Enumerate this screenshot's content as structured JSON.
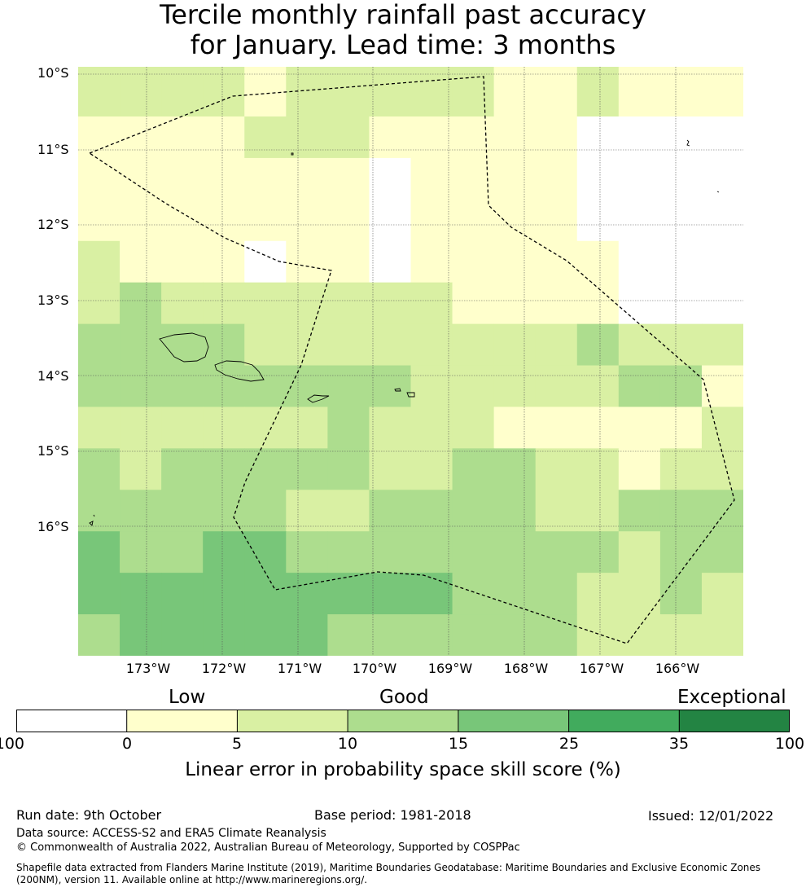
{
  "title_line1": "Tercile monthly rainfall past accuracy",
  "title_line2": "for January. Lead time: 3 months",
  "lat_labels": [
    "10°S",
    "11°S",
    "12°S",
    "13°S",
    "14°S",
    "15°S",
    "16°S"
  ],
  "lon_labels": [
    "173°W",
    "172°W",
    "171°W",
    "170°W",
    "169°W",
    "168°W",
    "167°W",
    "166°W"
  ],
  "colorbar": {
    "categories": [
      "Low",
      "Good",
      "Exceptional"
    ],
    "ticks": [
      "-100",
      "0",
      "5",
      "10",
      "15",
      "25",
      "35",
      "100"
    ],
    "colors": [
      "#ffffff",
      "#ffffcc",
      "#d9f0a3",
      "#addd8e",
      "#78c679",
      "#41ab5d",
      "#238443"
    ],
    "label": "Linear error in probability space skill score (%)"
  },
  "map": {
    "palette": {
      "0": "#ffffff",
      "1": "#ffffcc",
      "2": "#d9f0a3",
      "3": "#addd8e",
      "4": "#78c679"
    },
    "grid": [
      [
        2,
        2,
        2,
        2,
        1,
        2,
        2,
        2,
        2,
        2,
        1,
        1,
        2,
        1,
        1,
        1
      ],
      [
        1,
        1,
        1,
        1,
        2,
        2,
        2,
        1,
        1,
        1,
        1,
        1,
        0,
        0,
        0,
        0
      ],
      [
        1,
        1,
        1,
        1,
        1,
        1,
        1,
        0,
        1,
        1,
        1,
        1,
        0,
        0,
        0,
        0
      ],
      [
        1,
        1,
        1,
        1,
        1,
        1,
        1,
        0,
        1,
        1,
        1,
        1,
        0,
        0,
        0,
        0
      ],
      [
        2,
        1,
        1,
        1,
        0,
        1,
        1,
        0,
        1,
        1,
        1,
        1,
        1,
        0,
        0,
        0
      ],
      [
        2,
        3,
        2,
        2,
        2,
        2,
        2,
        2,
        2,
        1,
        1,
        1,
        1,
        0,
        0,
        0
      ],
      [
        3,
        3,
        3,
        3,
        2,
        2,
        2,
        2,
        2,
        2,
        2,
        2,
        3,
        2,
        2,
        2
      ],
      [
        3,
        3,
        3,
        3,
        3,
        3,
        3,
        3,
        2,
        2,
        2,
        2,
        2,
        3,
        3,
        1
      ],
      [
        2,
        2,
        2,
        2,
        2,
        2,
        3,
        2,
        2,
        2,
        1,
        1,
        1,
        1,
        1,
        2
      ],
      [
        3,
        2,
        3,
        3,
        3,
        3,
        3,
        2,
        2,
        3,
        3,
        2,
        2,
        1,
        2,
        2
      ],
      [
        3,
        3,
        3,
        3,
        3,
        2,
        2,
        3,
        3,
        3,
        3,
        2,
        2,
        3,
        3,
        3
      ],
      [
        4,
        3,
        3,
        4,
        4,
        3,
        3,
        3,
        3,
        3,
        3,
        3,
        3,
        2,
        3,
        3
      ],
      [
        4,
        4,
        4,
        4,
        4,
        4,
        4,
        4,
        4,
        3,
        3,
        3,
        2,
        2,
        3,
        2
      ],
      [
        3,
        4,
        4,
        4,
        4,
        4,
        3,
        3,
        3,
        3,
        3,
        3,
        2,
        2,
        2,
        2
      ]
    ]
  },
  "footer": {
    "run_date": "Run date: 9th October",
    "base_period": "Base period: 1981-2018",
    "issued": "Issued: 12/01/2022",
    "data_source": "Data source: ACCESS-S2 and ERA5 Climate Reanalysis",
    "copyright": "© Commonwealth of Australia 2022, Australian Bureau of Meteorology, Supported by COSPPac",
    "shapefile": "Shapefile data extracted from Flanders Marine Institute (2019), Maritime Boundaries Geodatabase: Maritime Boundaries and Exclusive Economic Zones (200NM), version 11. Available online at http://www.marineregions.org/."
  }
}
